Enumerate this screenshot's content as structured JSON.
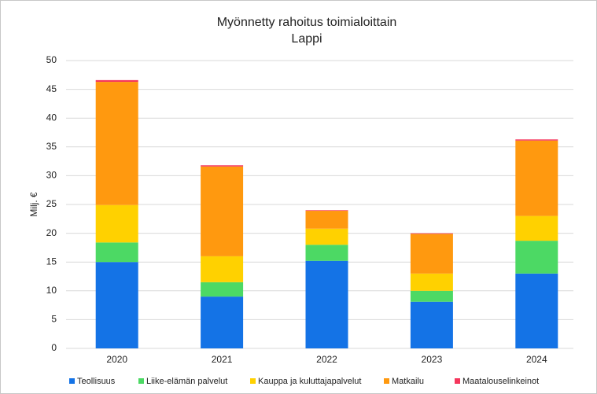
{
  "chart_data": {
    "type": "stacked_bar",
    "title": "Myönnetty  rahoitus toimialoittain",
    "subtitle": "Lappi",
    "y_label": "Milj. €",
    "categories": [
      "2020",
      "2021",
      "2022",
      "2023",
      "2024"
    ],
    "series": [
      {
        "name": "Teollisuus",
        "color": "#1473e6",
        "values": [
          15.0,
          9.0,
          15.2,
          8.1,
          13.0
        ]
      },
      {
        "name": "Liike-elämän palvelut",
        "color": "#4cd964",
        "values": [
          3.4,
          2.5,
          2.8,
          1.9,
          5.7
        ]
      },
      {
        "name": "Kauppa ja kuluttajapalvelut",
        "color": "#ffd100",
        "values": [
          6.5,
          4.5,
          2.8,
          3.0,
          4.3
        ]
      },
      {
        "name": "Matkailu",
        "color": "#ff990f",
        "values": [
          21.4,
          15.6,
          3.1,
          6.9,
          13.1
        ]
      },
      {
        "name": "Maatalouselinkeinot",
        "color": "#f5365c",
        "values": [
          0.3,
          0.2,
          0.1,
          0.1,
          0.2
        ]
      }
    ],
    "ylim": [
      0,
      50
    ],
    "yticks": [
      0,
      5,
      10,
      15,
      20,
      25,
      30,
      35,
      40,
      45,
      50
    ],
    "grid": true,
    "legend": "bottom"
  }
}
